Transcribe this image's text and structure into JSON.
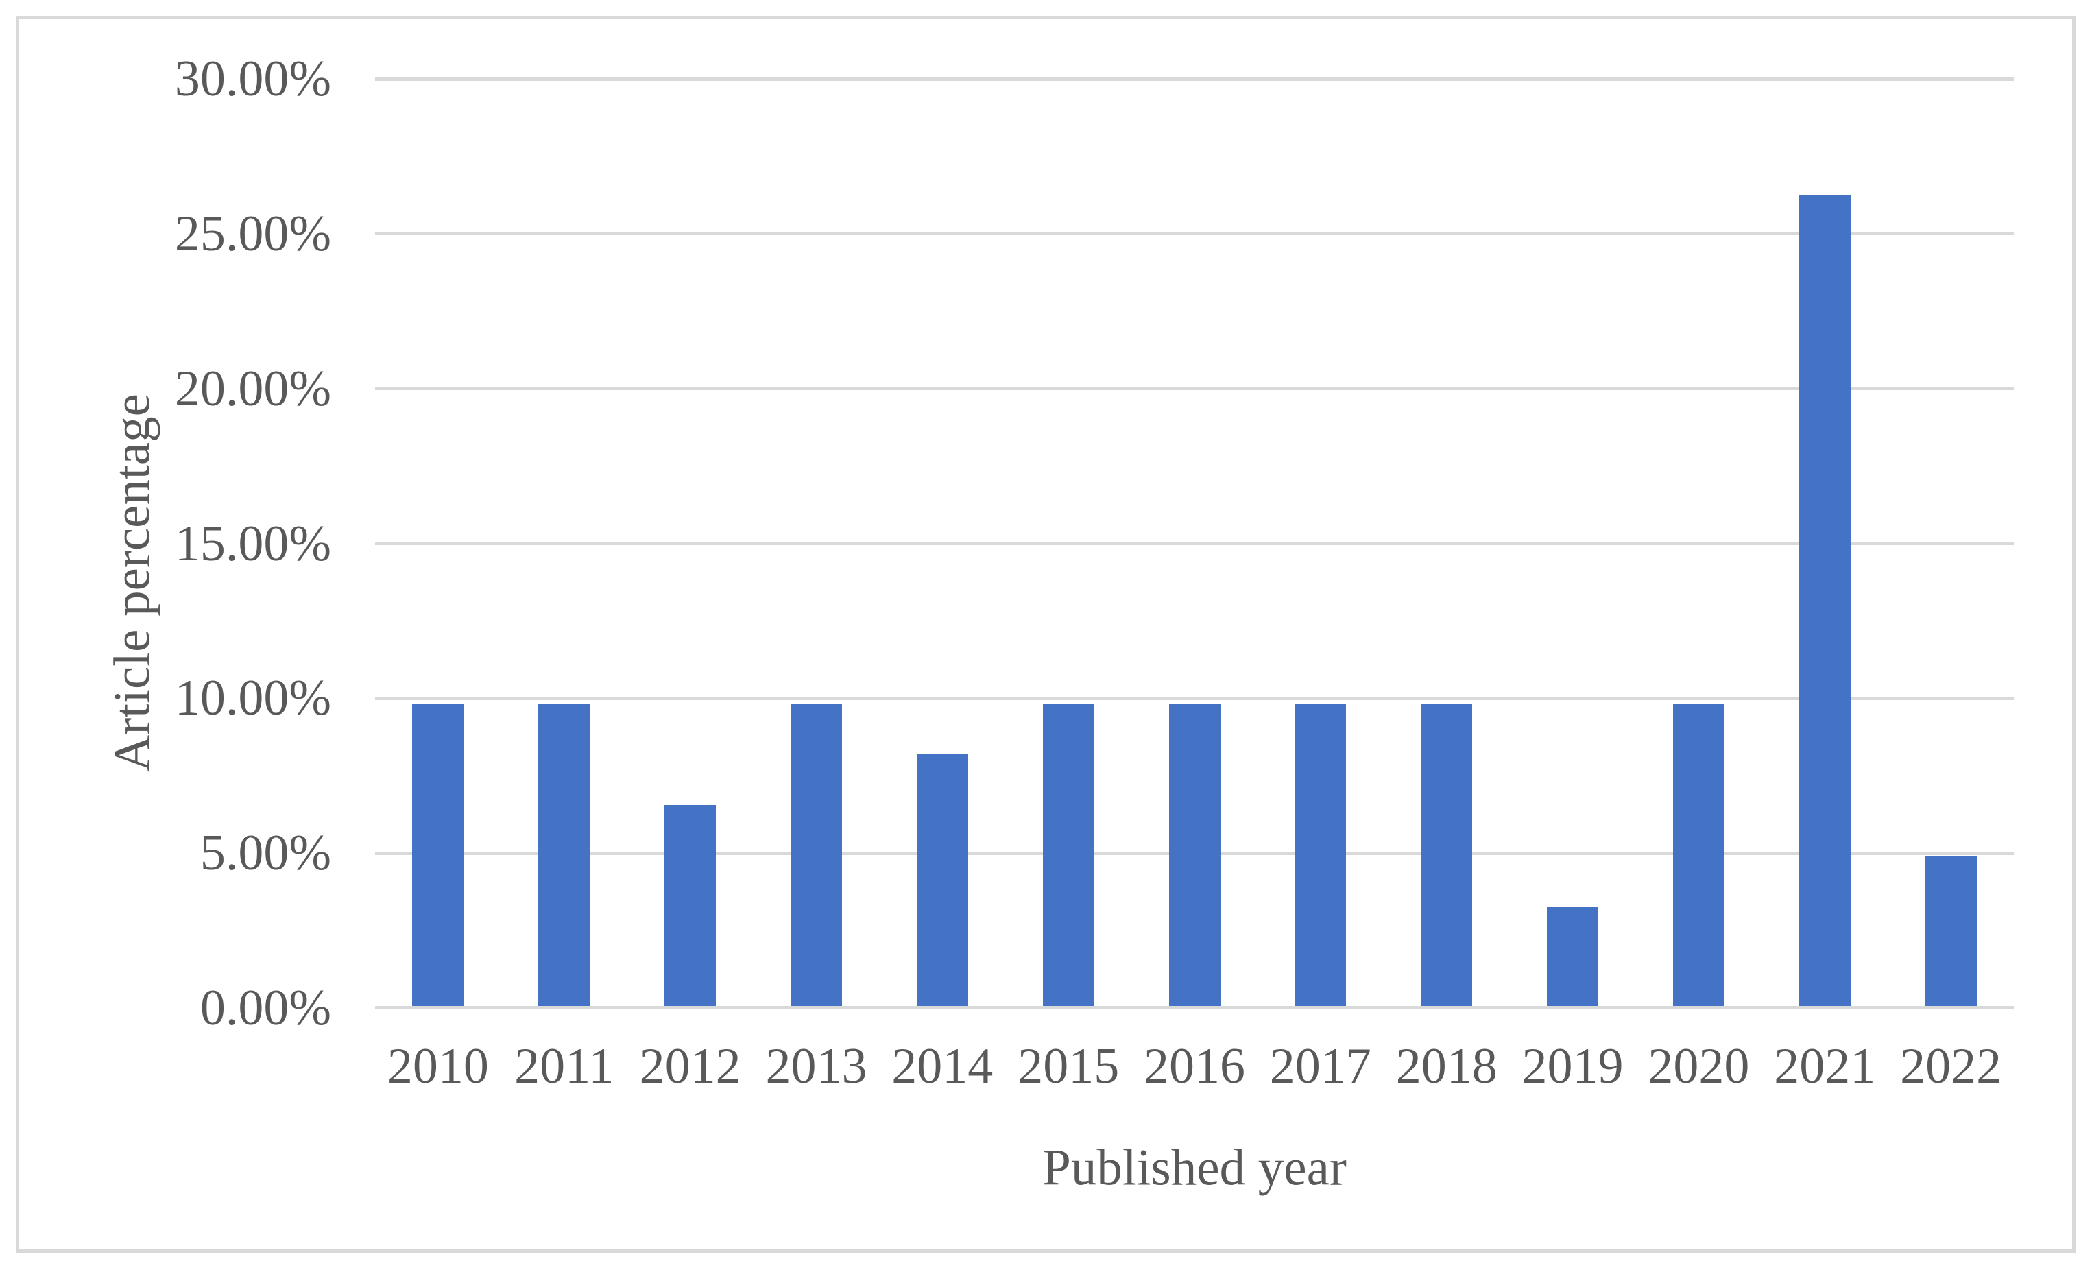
{
  "chart_data": {
    "type": "bar",
    "title": "",
    "xlabel": "Published year",
    "ylabel": "Article percentage",
    "categories": [
      "2010",
      "2011",
      "2012",
      "2013",
      "2014",
      "2015",
      "2016",
      "2017",
      "2018",
      "2019",
      "2020",
      "2021",
      "2022"
    ],
    "values": [
      9.84,
      9.84,
      6.56,
      9.84,
      8.2,
      9.84,
      9.84,
      9.84,
      9.84,
      3.28,
      9.84,
      26.23,
      4.92
    ],
    "value_unit": "%",
    "ylim": [
      0,
      30
    ],
    "ytick_step": 5,
    "ytick_labels": [
      "0.00%",
      "5.00%",
      "10.00%",
      "15.00%",
      "20.00%",
      "25.00%",
      "30.00%"
    ],
    "grid": "horizontal",
    "legend": "none",
    "colors": {
      "bar": "#4472C4",
      "gridline": "#D9D9D9",
      "axis_line": "#D9D9D9",
      "text": "#595959",
      "frame_border": "#D9D9D9",
      "background": "#FFFFFF"
    }
  }
}
